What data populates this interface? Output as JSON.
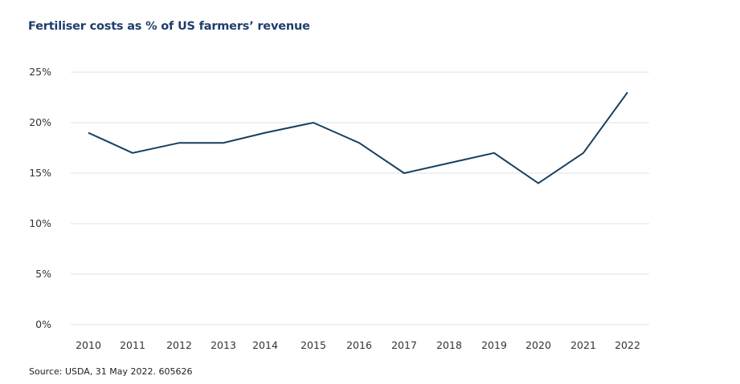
{
  "chart_data": {
    "type": "line",
    "title": "Fertiliser costs as % of US farmers’ revenue",
    "xlabel": "",
    "ylabel": "",
    "x": [
      "2010",
      "2011",
      "2012",
      "2013",
      "2014",
      "2015",
      "2016",
      "2017",
      "2018",
      "2019",
      "2020",
      "2021",
      "2022"
    ],
    "series": [
      {
        "name": "Fertiliser costs as % of revenue",
        "values": [
          19,
          17,
          18,
          18,
          19,
          20,
          18,
          15,
          16,
          17,
          14,
          17,
          23
        ],
        "color": "#173f5f"
      }
    ],
    "ylim": [
      0,
      25
    ],
    "yticks": [
      0,
      5,
      10,
      15,
      20,
      25
    ],
    "ytick_labels": [
      "0%",
      "5%",
      "10%",
      "15%",
      "20%",
      "25%"
    ],
    "grid": true,
    "legend": "none",
    "source": "Source: USDA, 31 May 2022.  605626"
  }
}
